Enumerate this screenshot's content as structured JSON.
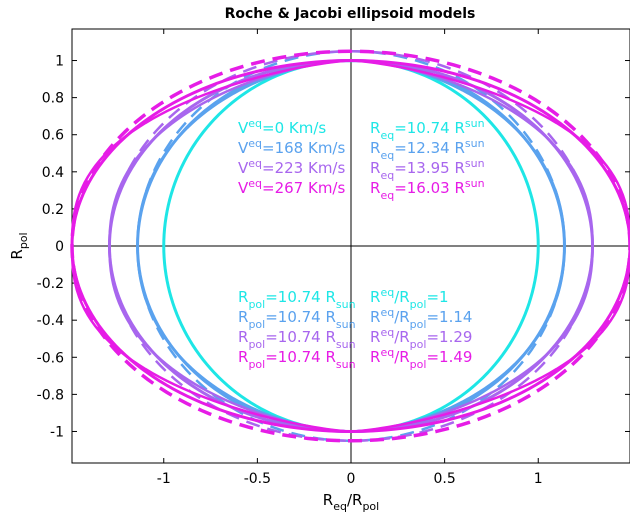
{
  "chart_data": {
    "type": "line",
    "title": "Roche & Jacobi ellipsoid models",
    "xlabel": {
      "base": "R",
      "sub1": "eq",
      "mid": "/R",
      "sub2": "pol"
    },
    "ylabel": {
      "base": "R",
      "sub": "pol"
    },
    "xlim": [
      -1.49,
      1.49
    ],
    "ylim": [
      -1.17,
      1.17
    ],
    "x_ticks": [
      -1,
      -0.5,
      0,
      0.5,
      1
    ],
    "x_tick_labels": [
      "-1",
      "-0.5",
      "0",
      "0.5",
      "1"
    ],
    "y_ticks": [
      1,
      0.8,
      0.6,
      0.4,
      0.2,
      0,
      -0.2,
      -0.4,
      -0.6,
      -0.8,
      -1
    ],
    "y_tick_labels": [
      "1",
      "0.8",
      "0.6",
      "0.4",
      "0.2",
      "0",
      "-0.2",
      "-0.4",
      "-0.6",
      "-0.8",
      "-1"
    ],
    "grid": false,
    "series": [
      {
        "ratio": 1.0,
        "color": "#1EE6E6",
        "veq": "=0 Km/s",
        "req": "=10.74 R",
        "rpol": "=10.74 R",
        "ratio_text": "=1"
      },
      {
        "ratio": 1.14,
        "color": "#5AA2EE",
        "veq": "=168 Km/s",
        "req": "=12.34 R",
        "rpol": "=10.74 R",
        "ratio_text": "=1.14"
      },
      {
        "ratio": 1.29,
        "color": "#A866EE",
        "veq": "=223 Km/s",
        "req": "=13.95 R",
        "rpol": "=10.74 R",
        "ratio_text": "=1.29"
      },
      {
        "ratio": 1.49,
        "color": "#E61CE6",
        "veq": "=267 Km/s",
        "req": "=16.03 R",
        "rpol": "=10.74 R",
        "ratio_text": "=1.49"
      }
    ],
    "annotation_text": {
      "V": "V",
      "R": "R",
      "eq": "eq",
      "pol": "pol",
      "sun": "sun",
      "slashR": "/R"
    }
  }
}
